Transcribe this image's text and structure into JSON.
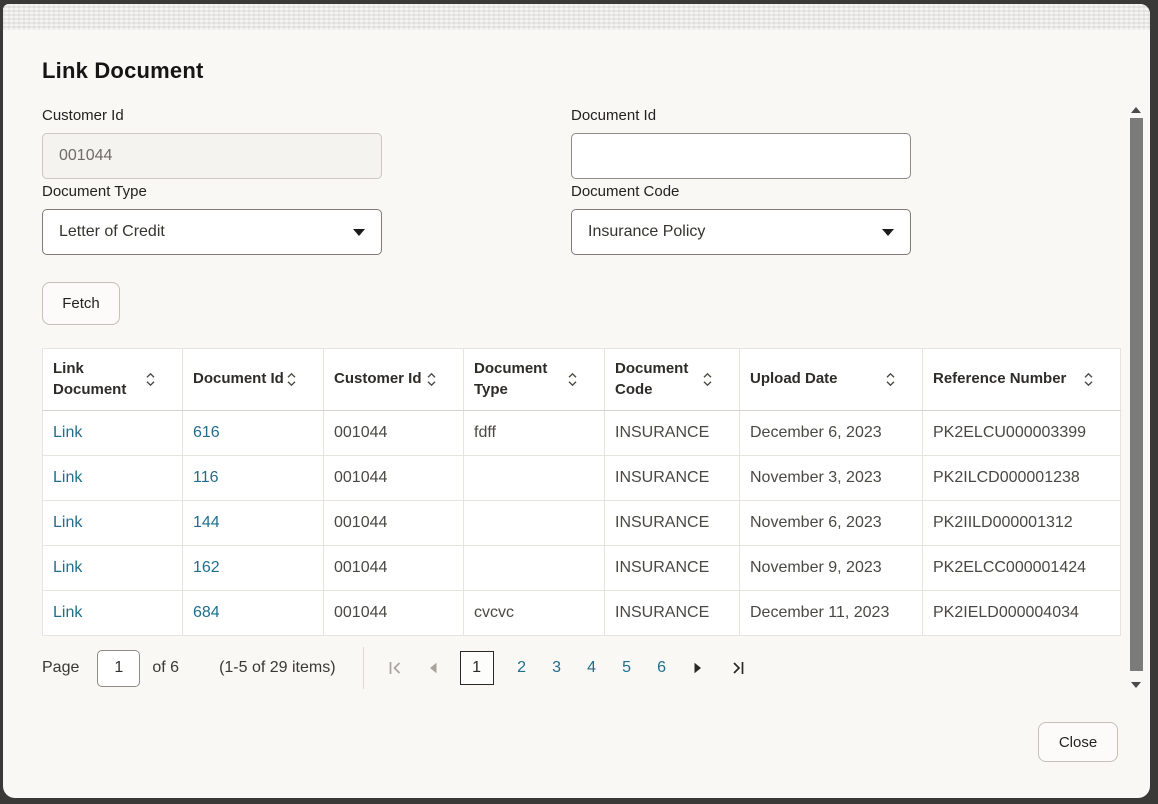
{
  "dialog": {
    "title": "Link Document",
    "close_label": "Close"
  },
  "form": {
    "customer_id": {
      "label": "Customer Id",
      "value": "001044"
    },
    "document_id": {
      "label": "Document Id",
      "value": "",
      "placeholder": ""
    },
    "document_type": {
      "label": "Document Type",
      "value": "Letter of Credit"
    },
    "document_code": {
      "label": "Document Code",
      "value": "Insurance Policy"
    },
    "fetch_label": "Fetch"
  },
  "table": {
    "columns": [
      {
        "key": "link_document",
        "label": "Link Document",
        "sortable": true
      },
      {
        "key": "document_id",
        "label": "Document Id",
        "sortable": true
      },
      {
        "key": "customer_id",
        "label": "Customer Id",
        "sortable": true
      },
      {
        "key": "document_type",
        "label": "Document Type",
        "sortable": true
      },
      {
        "key": "document_code",
        "label": "Document Code",
        "sortable": true
      },
      {
        "key": "upload_date",
        "label": "Upload Date",
        "sortable": true
      },
      {
        "key": "reference_number",
        "label": "Reference Number",
        "sortable": true
      }
    ],
    "rows": [
      {
        "link_document": "Link",
        "document_id": "616",
        "customer_id": "001044",
        "document_type": "fdff",
        "document_code": "INSURANCE",
        "upload_date": "December 6, 2023",
        "reference_number": "PK2ELCU000003399"
      },
      {
        "link_document": "Link",
        "document_id": "116",
        "customer_id": "001044",
        "document_type": "",
        "document_code": "INSURANCE",
        "upload_date": "November 3, 2023",
        "reference_number": "PK2ILCD000001238"
      },
      {
        "link_document": "Link",
        "document_id": "144",
        "customer_id": "001044",
        "document_type": "",
        "document_code": "INSURANCE",
        "upload_date": "November 6, 2023",
        "reference_number": "PK2IILD000001312"
      },
      {
        "link_document": "Link",
        "document_id": "162",
        "customer_id": "001044",
        "document_type": "",
        "document_code": "INSURANCE",
        "upload_date": "November 9, 2023",
        "reference_number": "PK2ELCC000001424"
      },
      {
        "link_document": "Link",
        "document_id": "684",
        "customer_id": "001044",
        "document_type": "cvcvc",
        "document_code": "INSURANCE",
        "upload_date": "December 11, 2023",
        "reference_number": "PK2IELD000004034"
      }
    ]
  },
  "pagination": {
    "page_label": "Page",
    "current_page": "1",
    "of_label": "of 6",
    "items_summary": "(1-5 of 29 items)",
    "pages": [
      "1",
      "2",
      "3",
      "4",
      "5",
      "6"
    ],
    "current": "1"
  },
  "icons": {
    "dropdown_arrow": "caret-down",
    "sort": "sort-up-down-chevrons",
    "first_page": "bar-chevron-left",
    "prev_page": "triangle-left",
    "next_page": "triangle-right",
    "last_page": "chevron-right-bar",
    "scroll_up": "triangle-up",
    "scroll_down": "triangle-down"
  },
  "colors": {
    "link": "#1f6e8d",
    "accent": "#1f6e8d",
    "dialog_background": "#f9f8f5",
    "overlay_background": "#3a3937",
    "table_border": "#e7e4e0",
    "disabled_icon": "#a7a39d",
    "enabled_icon": "#2b2926"
  }
}
